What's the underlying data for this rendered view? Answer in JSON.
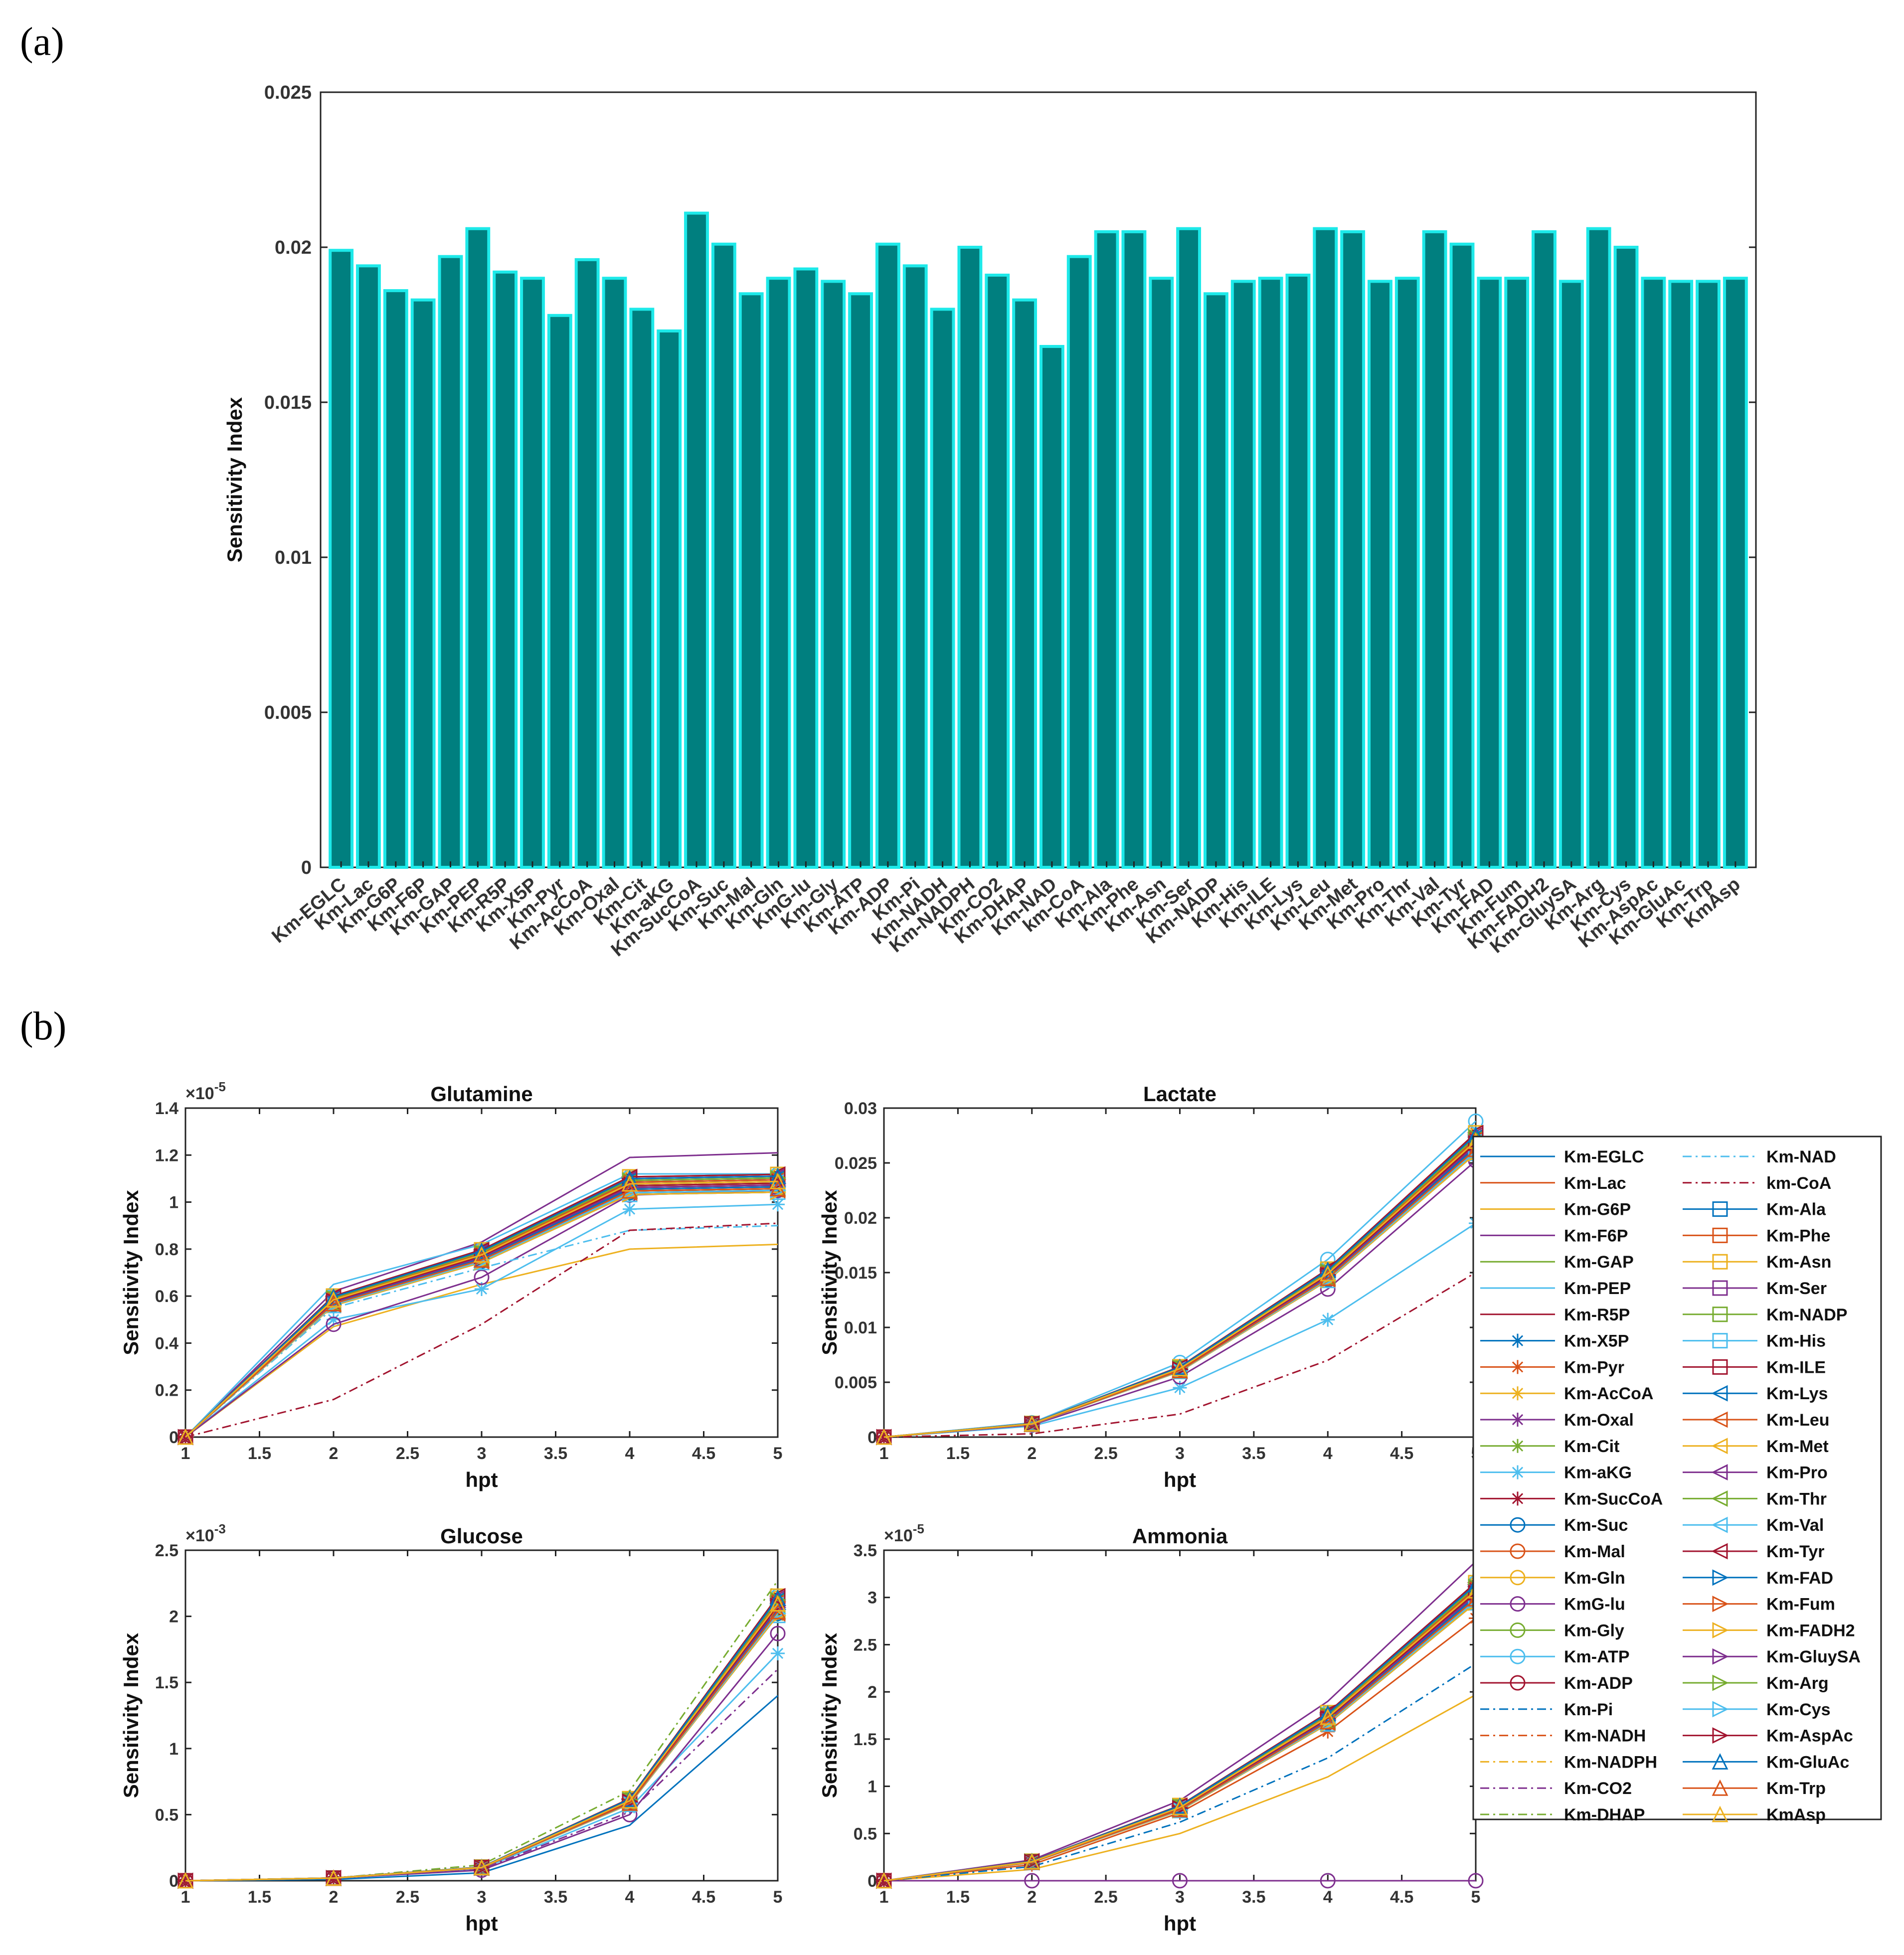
{
  "labels": {
    "panel_a": "(a)",
    "panel_b": "(b)"
  },
  "colors": {
    "bar_fill": "#007f7f",
    "bar_edge": "#1de9e9",
    "palette": [
      "#0072BD",
      "#D95319",
      "#EDB120",
      "#7E2F8E",
      "#77AC30",
      "#4DBEEE",
      "#A2142F"
    ]
  },
  "chart_data": [
    {
      "id": "panel-a",
      "type": "bar",
      "title": "",
      "xlabel": "",
      "ylabel": "Sensitivity Index",
      "ylim": [
        0,
        0.025
      ],
      "yticks": [
        0,
        0.005,
        0.01,
        0.015,
        0.02,
        0.025
      ],
      "ytick_labels": [
        "0",
        "0.005",
        "0.01",
        "0.015",
        "0.02",
        "0.025"
      ],
      "categories": [
        "Km-EGLC",
        "Km-Lac",
        "Km-G6P",
        "Km-F6P",
        "Km-GAP",
        "Km-PEP",
        "Km-R5P",
        "Km-X5P",
        "Km-Pyr",
        "Km-AcCoA",
        "Km-Oxal",
        "Km-Cit",
        "Km-aKG",
        "Km-SucCoA",
        "Km-Suc",
        "Km-Mal",
        "Km-Gln",
        "KmG-lu",
        "Km-Gly",
        "Km-ATP",
        "Km-ADP",
        "Km-Pi",
        "Km-NADH",
        "Km-NADPH",
        "Km-CO2",
        "Km-DHAP",
        "Km-NAD",
        "km-CoA",
        "Km-Ala",
        "Km-Phe",
        "Km-Asn",
        "Km-Ser",
        "Km-NADP",
        "Km-His",
        "Km-ILE",
        "Km-Lys",
        "Km-Leu",
        "Km-Met",
        "Km-Pro",
        "Km-Thr",
        "Km-Val",
        "Km-Tyr",
        "Km-FAD",
        "Km-Fum",
        "Km-FADH2",
        "Km-GluySA",
        "Km-Arg",
        "Km-Cys",
        "Km-AspAc",
        "Km-GluAc",
        "Km-Trp",
        "KmAsp"
      ],
      "values": [
        0.0199,
        0.0194,
        0.0186,
        0.0183,
        0.0197,
        0.0206,
        0.0192,
        0.019,
        0.0178,
        0.0196,
        0.019,
        0.018,
        0.0173,
        0.0211,
        0.0201,
        0.0185,
        0.019,
        0.0193,
        0.0189,
        0.0185,
        0.0201,
        0.0194,
        0.018,
        0.02,
        0.0191,
        0.0183,
        0.0168,
        0.0197,
        0.0205,
        0.0205,
        0.019,
        0.0206,
        0.0185,
        0.0189,
        0.019,
        0.0191,
        0.0206,
        0.0205,
        0.0189,
        0.019,
        0.0205,
        0.0201,
        0.019,
        0.019,
        0.0205,
        0.0189,
        0.0206,
        0.02,
        0.019,
        0.0189,
        0.0189,
        0.019
      ]
    },
    {
      "id": "glutamine",
      "type": "line",
      "title": "Glutamine",
      "xlabel": "hpt",
      "ylabel": "Sensitivity Index",
      "exponent": "-5",
      "xlim": [
        1,
        5
      ],
      "ylim": [
        0,
        1.4
      ],
      "xticks": [
        "1",
        "1.5",
        "2",
        "2.5",
        "3",
        "3.5",
        "4",
        "4.5",
        "5"
      ],
      "yticks": [
        "0",
        "0.2",
        "0.4",
        "0.6",
        "0.8",
        "1",
        "1.2",
        "1.4"
      ],
      "x": [
        1,
        2,
        3,
        4,
        5
      ],
      "base": [
        0,
        0.58,
        0.77,
        1.07,
        1.08
      ],
      "special": [
        {
          "name": "Km-F6P",
          "values": [
            0,
            0.62,
            0.83,
            1.19,
            1.21
          ]
        },
        {
          "name": "Km-PEP",
          "values": [
            0,
            0.65,
            0.82,
            1.12,
            1.12
          ]
        },
        {
          "name": "Km-G6P",
          "values": [
            0,
            0.47,
            0.65,
            0.8,
            0.82
          ]
        },
        {
          "name": "Km-aKG",
          "values": [
            0,
            0.5,
            0.63,
            0.97,
            0.99
          ]
        },
        {
          "name": "KmG-lu",
          "values": [
            0,
            0.48,
            0.68,
            1.03,
            1.05
          ]
        },
        {
          "name": "Km-NAD",
          "values": [
            0,
            0.55,
            0.72,
            0.88,
            0.9
          ]
        },
        {
          "name": "km-CoA",
          "values": [
            0,
            0.16,
            0.48,
            0.88,
            0.91
          ]
        }
      ]
    },
    {
      "id": "lactate",
      "type": "line",
      "title": "Lactate",
      "xlabel": "hpt",
      "ylabel": "Sensitivity Index",
      "exponent": "",
      "xlim": [
        1,
        5
      ],
      "ylim": [
        0,
        0.03
      ],
      "xticks": [
        "1",
        "1.5",
        "2",
        "2.5",
        "3",
        "3.5",
        "4",
        "4.5",
        "5"
      ],
      "yticks": [
        "0",
        "0.005",
        "0.01",
        "0.015",
        "0.02",
        "0.025",
        "0.03"
      ],
      "x": [
        1,
        2,
        3,
        4,
        5
      ],
      "base": [
        0,
        0.0012,
        0.0062,
        0.0148,
        0.0268
      ],
      "special": [
        {
          "name": "Km-ATP",
          "values": [
            0,
            0.0013,
            0.0068,
            0.0162,
            0.0288
          ]
        },
        {
          "name": "Km-aKG",
          "values": [
            0,
            0.001,
            0.0045,
            0.0107,
            0.0195
          ]
        },
        {
          "name": "km-CoA",
          "values": [
            0,
            0.0003,
            0.0021,
            0.007,
            0.015
          ]
        },
        {
          "name": "KmG-lu",
          "values": [
            0,
            0.0011,
            0.0055,
            0.0135,
            0.0252
          ]
        }
      ]
    },
    {
      "id": "glucose",
      "type": "line",
      "title": "Glucose",
      "xlabel": "hpt",
      "ylabel": "Sensitivity Index",
      "exponent": "-3",
      "xlim": [
        1,
        5
      ],
      "ylim": [
        0,
        2.5
      ],
      "xticks": [
        "1",
        "1.5",
        "2",
        "2.5",
        "3",
        "3.5",
        "4",
        "4.5",
        "5"
      ],
      "yticks": [
        "0",
        "0.5",
        "1",
        "1.5",
        "2",
        "2.5"
      ],
      "x": [
        1,
        2,
        3,
        4,
        5
      ],
      "base": [
        0,
        0.02,
        0.1,
        0.6,
        2.08
      ],
      "special": [
        {
          "name": "Km-DHAP",
          "values": [
            0,
            0.02,
            0.12,
            0.68,
            2.27
          ]
        },
        {
          "name": "Km-EGLC",
          "values": [
            0,
            0.01,
            0.06,
            0.42,
            1.4
          ]
        },
        {
          "name": "Km-aKG",
          "values": [
            0,
            0.02,
            0.09,
            0.55,
            1.72
          ]
        },
        {
          "name": "KmG-lu",
          "values": [
            0,
            0.02,
            0.08,
            0.5,
            1.87
          ]
        },
        {
          "name": "Km-CO2",
          "values": [
            0,
            0.02,
            0.09,
            0.52,
            1.6
          ]
        }
      ]
    },
    {
      "id": "ammonia",
      "type": "line",
      "title": "Ammonia",
      "xlabel": "hpt",
      "ylabel": "Sensitivity Index",
      "exponent": "-5",
      "xlim": [
        1,
        5
      ],
      "ylim": [
        0,
        3.5
      ],
      "xticks": [
        "1",
        "1.5",
        "2",
        "2.5",
        "3",
        "3.5",
        "4",
        "4.5",
        "5"
      ],
      "yticks": [
        "0",
        "0.5",
        "1",
        "1.5",
        "2",
        "2.5",
        "3",
        "3.5"
      ],
      "x": [
        1,
        2,
        3,
        4,
        5
      ],
      "base": [
        0,
        0.2,
        0.77,
        1.72,
        3.05
      ],
      "special": [
        {
          "name": "Km-F6P",
          "values": [
            0,
            0.22,
            0.85,
            1.9,
            3.38
          ]
        },
        {
          "name": "Km-G6P",
          "values": [
            0,
            0.12,
            0.5,
            1.1,
            1.97
          ]
        },
        {
          "name": "Km-Pi",
          "values": [
            0,
            0.15,
            0.62,
            1.3,
            2.3
          ]
        },
        {
          "name": "Km-Pyr",
          "values": [
            0,
            0.17,
            0.72,
            1.58,
            2.78
          ]
        },
        {
          "name": "KmG-lu",
          "values": [
            0,
            0,
            0,
            0,
            0
          ]
        }
      ]
    }
  ],
  "legend": {
    "entries": [
      {
        "label": "Km-EGLC",
        "dash": "solid",
        "marker": "none"
      },
      {
        "label": "Km-Lac",
        "dash": "solid",
        "marker": "none"
      },
      {
        "label": "Km-G6P",
        "dash": "solid",
        "marker": "none"
      },
      {
        "label": "Km-F6P",
        "dash": "solid",
        "marker": "none"
      },
      {
        "label": "Km-GAP",
        "dash": "solid",
        "marker": "none"
      },
      {
        "label": "Km-PEP",
        "dash": "solid",
        "marker": "none"
      },
      {
        "label": "Km-R5P",
        "dash": "solid",
        "marker": "none"
      },
      {
        "label": "Km-X5P",
        "dash": "solid",
        "marker": "star"
      },
      {
        "label": "Km-Pyr",
        "dash": "solid",
        "marker": "star"
      },
      {
        "label": "Km-AcCoA",
        "dash": "solid",
        "marker": "star"
      },
      {
        "label": "Km-Oxal",
        "dash": "solid",
        "marker": "star"
      },
      {
        "label": "Km-Cit",
        "dash": "solid",
        "marker": "star"
      },
      {
        "label": "Km-aKG",
        "dash": "solid",
        "marker": "star"
      },
      {
        "label": "Km-SucCoA",
        "dash": "solid",
        "marker": "star"
      },
      {
        "label": "Km-Suc",
        "dash": "solid",
        "marker": "circle"
      },
      {
        "label": "Km-Mal",
        "dash": "solid",
        "marker": "circle"
      },
      {
        "label": "Km-Gln",
        "dash": "solid",
        "marker": "circle"
      },
      {
        "label": "KmG-lu",
        "dash": "solid",
        "marker": "circle"
      },
      {
        "label": "Km-Gly",
        "dash": "solid",
        "marker": "circle"
      },
      {
        "label": "Km-ATP",
        "dash": "solid",
        "marker": "circle"
      },
      {
        "label": "Km-ADP",
        "dash": "solid",
        "marker": "circle"
      },
      {
        "label": "Km-Pi",
        "dash": "dashdot",
        "marker": "none"
      },
      {
        "label": "Km-NADH",
        "dash": "dashdot",
        "marker": "none"
      },
      {
        "label": "Km-NADPH",
        "dash": "dashdot",
        "marker": "none"
      },
      {
        "label": "Km-CO2",
        "dash": "dashdot",
        "marker": "none"
      },
      {
        "label": "Km-DHAP",
        "dash": "dashdot",
        "marker": "none"
      },
      {
        "label": "Km-NAD",
        "dash": "dashdot",
        "marker": "none"
      },
      {
        "label": "km-CoA",
        "dash": "dashdot",
        "marker": "none"
      },
      {
        "label": "Km-Ala",
        "dash": "solid",
        "marker": "square"
      },
      {
        "label": "Km-Phe",
        "dash": "solid",
        "marker": "square"
      },
      {
        "label": "Km-Asn",
        "dash": "solid",
        "marker": "square"
      },
      {
        "label": "Km-Ser",
        "dash": "solid",
        "marker": "square"
      },
      {
        "label": "Km-NADP",
        "dash": "solid",
        "marker": "square"
      },
      {
        "label": "Km-His",
        "dash": "solid",
        "marker": "square"
      },
      {
        "label": "Km-ILE",
        "dash": "solid",
        "marker": "square"
      },
      {
        "label": "Km-Lys",
        "dash": "solid",
        "marker": "triangle-left"
      },
      {
        "label": "Km-Leu",
        "dash": "solid",
        "marker": "triangle-left"
      },
      {
        "label": "Km-Met",
        "dash": "solid",
        "marker": "triangle-left"
      },
      {
        "label": "Km-Pro",
        "dash": "solid",
        "marker": "triangle-left"
      },
      {
        "label": "Km-Thr",
        "dash": "solid",
        "marker": "triangle-left"
      },
      {
        "label": "Km-Val",
        "dash": "solid",
        "marker": "triangle-left"
      },
      {
        "label": "Km-Tyr",
        "dash": "solid",
        "marker": "triangle-left"
      },
      {
        "label": "Km-FAD",
        "dash": "solid",
        "marker": "triangle-right"
      },
      {
        "label": "Km-Fum",
        "dash": "solid",
        "marker": "triangle-right"
      },
      {
        "label": "Km-FADH2",
        "dash": "solid",
        "marker": "triangle-right"
      },
      {
        "label": "Km-GluySA",
        "dash": "solid",
        "marker": "triangle-right"
      },
      {
        "label": "Km-Arg",
        "dash": "solid",
        "marker": "triangle-right"
      },
      {
        "label": "Km-Cys",
        "dash": "solid",
        "marker": "triangle-right"
      },
      {
        "label": "Km-AspAc",
        "dash": "solid",
        "marker": "triangle-right"
      },
      {
        "label": "Km-GluAc",
        "dash": "solid",
        "marker": "triangle-up"
      },
      {
        "label": "Km-Trp",
        "dash": "solid",
        "marker": "triangle-up"
      },
      {
        "label": "KmAsp",
        "dash": "solid",
        "marker": "triangle-up"
      }
    ]
  }
}
